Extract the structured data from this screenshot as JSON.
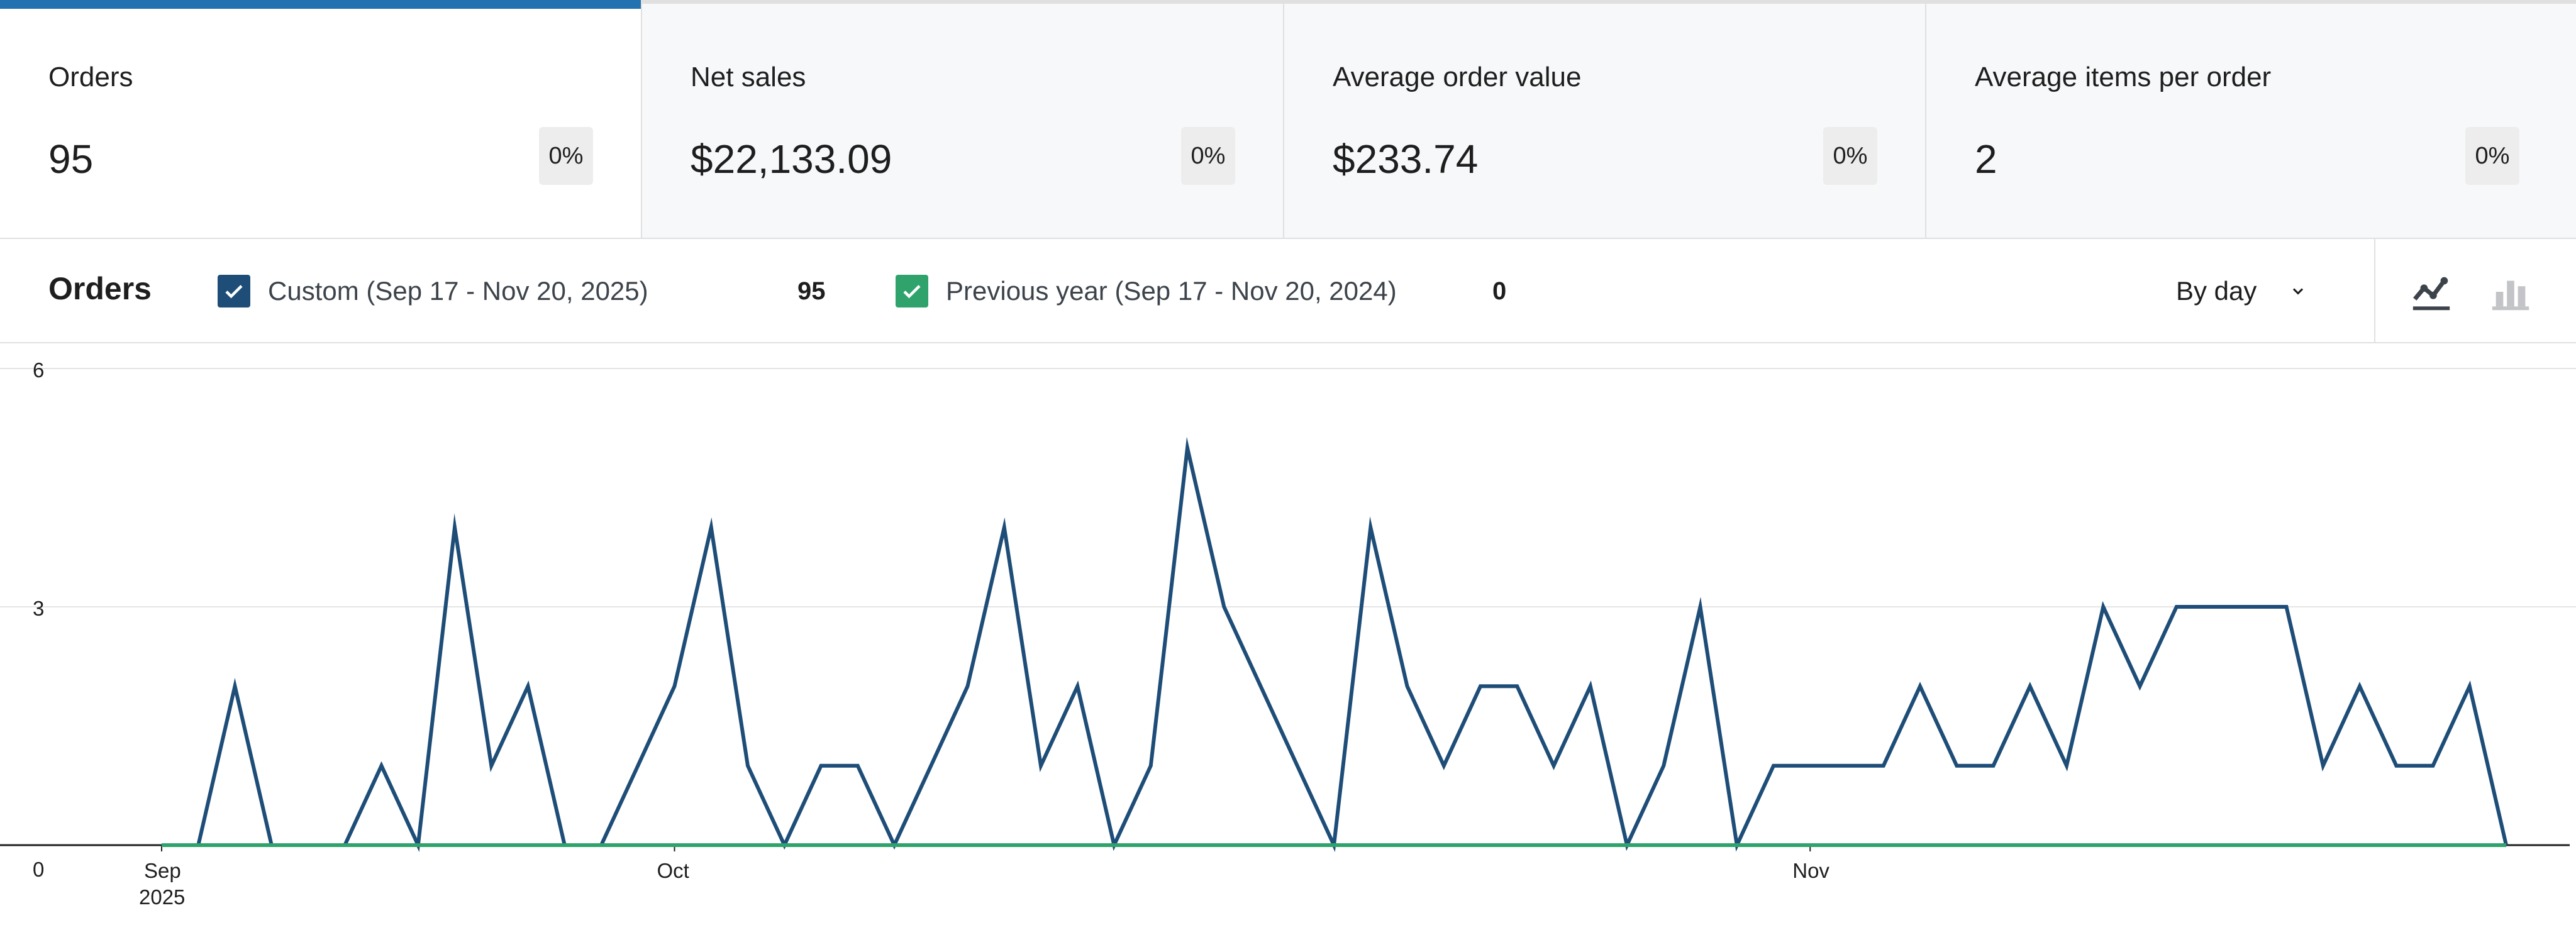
{
  "summary": {
    "tiles": [
      {
        "label": "Orders",
        "value": "95",
        "delta": "0%"
      },
      {
        "label": "Net sales",
        "value": "$22,133.09",
        "delta": "0%"
      },
      {
        "label": "Average order value",
        "value": "$233.74",
        "delta": "0%"
      },
      {
        "label": "Average items per order",
        "value": "2",
        "delta": "0%"
      }
    ]
  },
  "chart_header": {
    "title": "Orders",
    "legend": [
      {
        "label": "Custom (Sep 17 - Nov 20, 2025)",
        "total": "95",
        "color": "#1e4d78"
      },
      {
        "label": "Previous year (Sep 17 - Nov 20, 2024)",
        "total": "0",
        "color": "#2fa36b"
      }
    ],
    "interval": "By day",
    "chart_types": [
      "line-chart-icon",
      "bar-chart-icon"
    ]
  },
  "chart_data": {
    "type": "line",
    "title": "",
    "xlabel": "",
    "ylabel": "",
    "ylim": [
      0,
      6
    ],
    "y_ticks": [
      "0",
      "3",
      "6"
    ],
    "x_ticks": [
      {
        "label": "Sep",
        "sublabel": "2025",
        "date": "2025-09-17"
      },
      {
        "label": "Oct",
        "date": "2025-10-01"
      },
      {
        "label": "Nov",
        "date": "2025-11-01"
      }
    ],
    "x": [
      "2025-09-17",
      "2025-09-18",
      "2025-09-19",
      "2025-09-20",
      "2025-09-21",
      "2025-09-22",
      "2025-09-23",
      "2025-09-24",
      "2025-09-25",
      "2025-09-26",
      "2025-09-27",
      "2025-09-28",
      "2025-09-29",
      "2025-09-30",
      "2025-10-01",
      "2025-10-02",
      "2025-10-03",
      "2025-10-04",
      "2025-10-05",
      "2025-10-06",
      "2025-10-07",
      "2025-10-08",
      "2025-10-09",
      "2025-10-10",
      "2025-10-11",
      "2025-10-12",
      "2025-10-13",
      "2025-10-14",
      "2025-10-15",
      "2025-10-16",
      "2025-10-17",
      "2025-10-18",
      "2025-10-19",
      "2025-10-20",
      "2025-10-21",
      "2025-10-22",
      "2025-10-23",
      "2025-10-24",
      "2025-10-25",
      "2025-10-26",
      "2025-10-27",
      "2025-10-28",
      "2025-10-29",
      "2025-10-30",
      "2025-10-31",
      "2025-11-01",
      "2025-11-02",
      "2025-11-03",
      "2025-11-04",
      "2025-11-05",
      "2025-11-06",
      "2025-11-07",
      "2025-11-08",
      "2025-11-09",
      "2025-11-10",
      "2025-11-11",
      "2025-11-12",
      "2025-11-13",
      "2025-11-14",
      "2025-11-15",
      "2025-11-16",
      "2025-11-17",
      "2025-11-18",
      "2025-11-19",
      "2025-11-20"
    ],
    "series": [
      {
        "name": "Custom (Sep 17 - Nov 20, 2025)",
        "color": "#1e4d78",
        "values": [
          0,
          0,
          2,
          0,
          0,
          0,
          1,
          0,
          4,
          1,
          2,
          0,
          0,
          1,
          2,
          4,
          1,
          0,
          1,
          1,
          0,
          1,
          2,
          4,
          1,
          2,
          0,
          1,
          5,
          3,
          2,
          1,
          0,
          4,
          2,
          1,
          2,
          2,
          1,
          2,
          0,
          1,
          3,
          0,
          1,
          1,
          1,
          1,
          2,
          1,
          1,
          2,
          1,
          3,
          2,
          3,
          3,
          3,
          3,
          1,
          2,
          1,
          1,
          2,
          0
        ]
      },
      {
        "name": "Previous year (Sep 17 - Nov 20, 2024)",
        "color": "#2fa36b",
        "values": [
          0,
          0,
          0,
          0,
          0,
          0,
          0,
          0,
          0,
          0,
          0,
          0,
          0,
          0,
          0,
          0,
          0,
          0,
          0,
          0,
          0,
          0,
          0,
          0,
          0,
          0,
          0,
          0,
          0,
          0,
          0,
          0,
          0,
          0,
          0,
          0,
          0,
          0,
          0,
          0,
          0,
          0,
          0,
          0,
          0,
          0,
          0,
          0,
          0,
          0,
          0,
          0,
          0,
          0,
          0,
          0,
          0,
          0,
          0,
          0,
          0,
          0,
          0,
          0,
          0
        ]
      }
    ],
    "grid": true,
    "legend_placement": "top"
  }
}
